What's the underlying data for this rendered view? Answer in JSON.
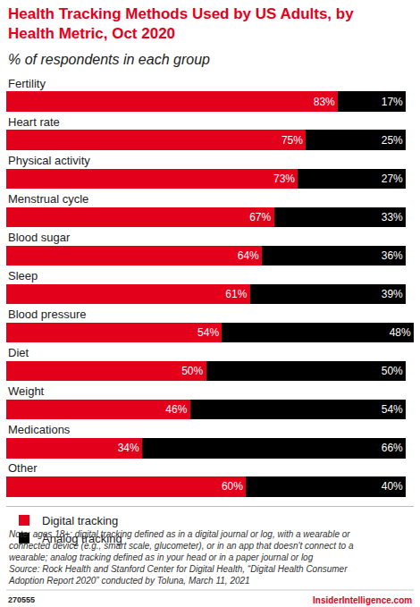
{
  "chart_data": {
    "type": "bar",
    "orientation": "horizontal",
    "stacked": true,
    "data_labels": true,
    "tick_labels": false,
    "grid": false,
    "legend": "bottom-left",
    "title": [
      "Health Tracking Methods Used by US Adults, by",
      "Health Metric, Oct 2020"
    ],
    "subtitle": "% of respondents in each group",
    "categories": [
      "Fertility",
      "Heart rate",
      "Physical activity",
      "Menstrual cycle",
      "Blood sugar",
      "Sleep",
      "Blood pressure",
      "Diet",
      "Weight",
      "Medications",
      "Other"
    ],
    "series": [
      {
        "name": "Digital tracking",
        "color": "#e3001b",
        "values": [
          83,
          75,
          73,
          67,
          64,
          61,
          54,
          50,
          46,
          34,
          60
        ],
        "value_labels": [
          "83%",
          "75%",
          "73%",
          "67%",
          "64%",
          "61%",
          "54%",
          "50%",
          "46%",
          "34%",
          "60%"
        ]
      },
      {
        "name": "Analog tracking",
        "color": "#000000",
        "values": [
          17,
          25,
          27,
          33,
          36,
          39,
          48,
          50,
          54,
          66,
          40
        ],
        "value_labels": [
          "17%",
          "25%",
          "27%",
          "33%",
          "36%",
          "39%",
          "48%",
          "50%",
          "54%",
          "66%",
          "40%"
        ]
      }
    ],
    "xlim": [
      0,
      102
    ],
    "note": [
      "Note: ages 18+; digital tracking defined as in a digital journal or log, with a wearable or",
      "connected device (e.g., smart scale, glucometer), or in an app that doesn't connect to a",
      "wearable; analog tracking defined as in your head or in a paper journal or log",
      "Source: Rock Health and Stanford Center for Digital Health, “Digital Health Consumer",
      "Adoption Report 2020” conducted by Toluna, March 11, 2021"
    ],
    "chart_id": "270555",
    "brand": "InsiderIntelligence.com"
  }
}
